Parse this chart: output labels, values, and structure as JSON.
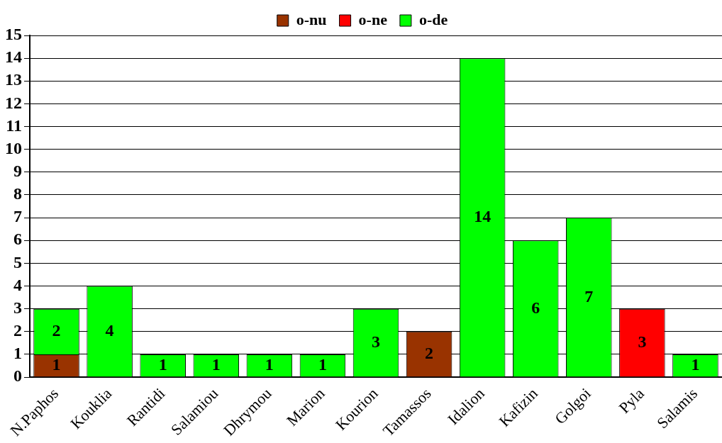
{
  "chart_data": {
    "type": "bar",
    "stacked": true,
    "categories": [
      "N.Paphos",
      "Kouklia",
      "Rantidi",
      "Salamiou",
      "Dhrymou",
      "Marion",
      "Kourion",
      "Tamassos",
      "Idalion",
      "Kafizin",
      "Golgoi",
      "Pyla",
      "Salamis"
    ],
    "series": [
      {
        "name": "o-nu",
        "color": "#993300",
        "values": [
          1,
          null,
          null,
          null,
          null,
          null,
          null,
          2,
          null,
          null,
          null,
          null,
          null
        ]
      },
      {
        "name": "o-ne",
        "color": "#ff0000",
        "values": [
          null,
          null,
          null,
          null,
          null,
          null,
          null,
          null,
          null,
          null,
          null,
          3,
          null
        ]
      },
      {
        "name": "o-de",
        "color": "#00ff00",
        "values": [
          2,
          4,
          1,
          1,
          1,
          1,
          3,
          null,
          14,
          6,
          7,
          null,
          1
        ]
      }
    ],
    "ylim": [
      0,
      15
    ],
    "yticks": [
      0,
      1,
      2,
      3,
      4,
      5,
      6,
      7,
      8,
      9,
      10,
      11,
      12,
      13,
      14,
      15
    ],
    "grid": "y",
    "legend": "top",
    "data_labels": true
  }
}
